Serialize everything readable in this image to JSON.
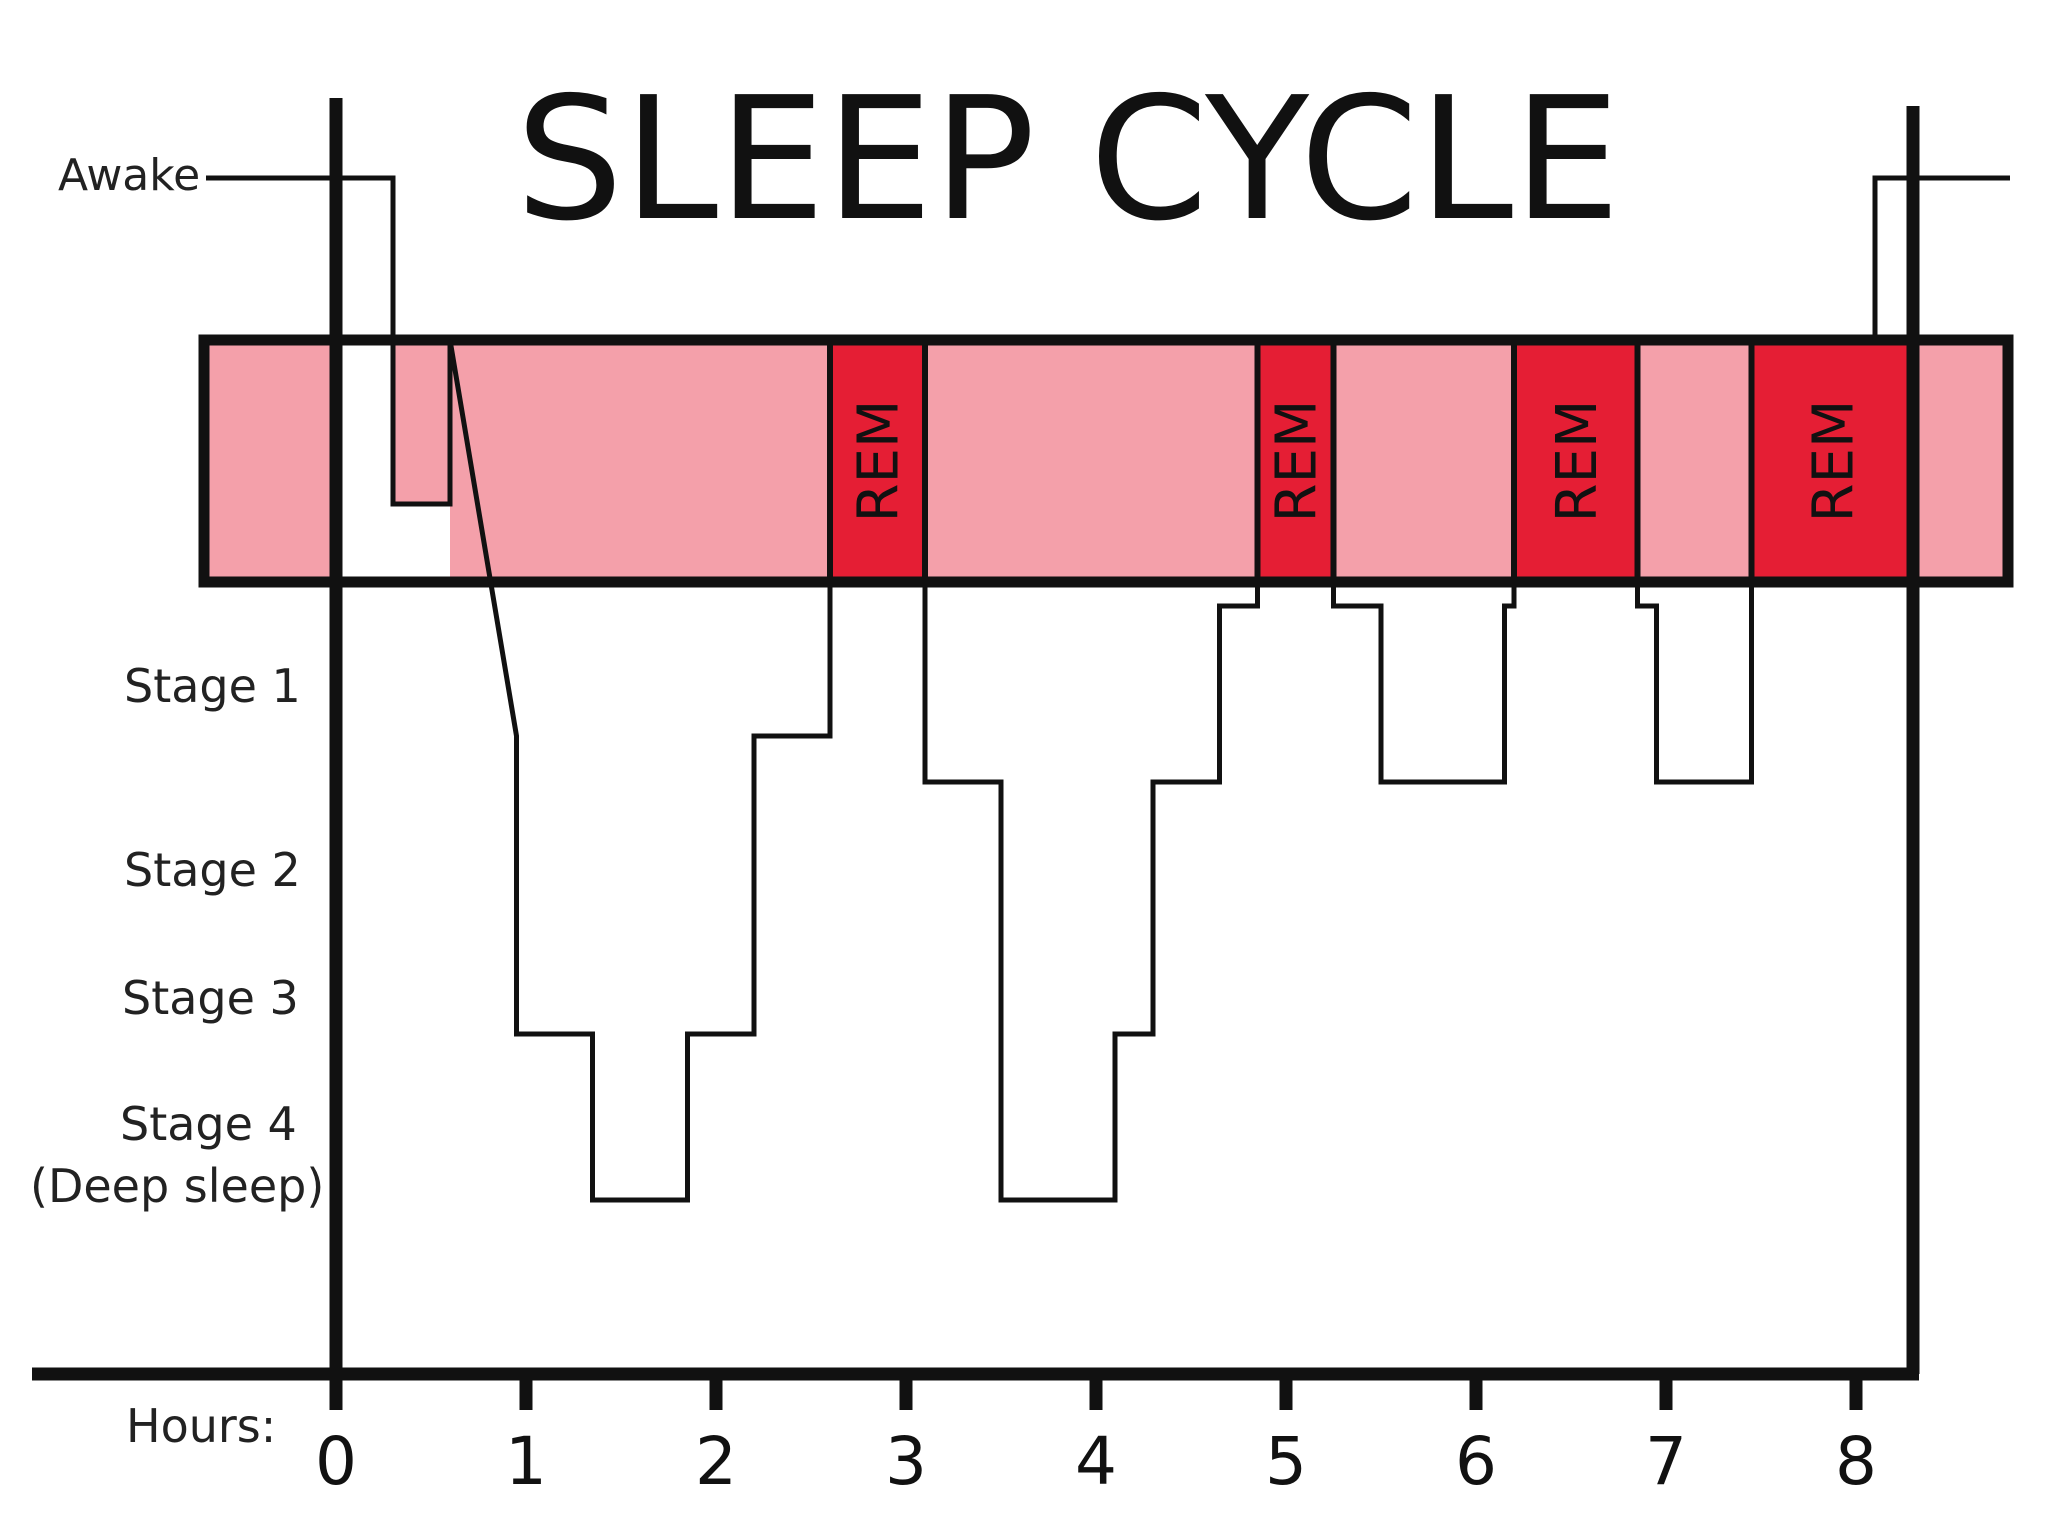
{
  "chart_data": {
    "type": "line",
    "title": "SLEEP CYCLE",
    "xlabel": "Hours:",
    "x_ticks": [
      "0",
      "1",
      "2",
      "3",
      "4",
      "5",
      "6",
      "7",
      "8"
    ],
    "xlim": [
      0,
      8.3
    ],
    "stage_labels": {
      "awake": "Awake",
      "stage1": "Stage 1",
      "stage2": "Stage 2",
      "stage3": "Stage 3",
      "stage4_line1": "Stage 4",
      "stage4_line2": "(Deep sleep)"
    },
    "rem_label": "REM",
    "rem_periods": [
      [
        2.6,
        3.1
      ],
      [
        4.85,
        5.25
      ],
      [
        6.2,
        6.85
      ],
      [
        7.45,
        8.3
      ]
    ],
    "band_colors": {
      "nrem": "#f4a0aa",
      "rem": "#e51e34",
      "gap": "#ffffff"
    },
    "hypnogram": [
      [
        -0.1,
        "awake"
      ],
      [
        0.3,
        "awake"
      ],
      [
        0.3,
        "transition"
      ],
      [
        0.6,
        "transition"
      ],
      [
        0.6,
        "rem"
      ],
      [
        0.95,
        "stage1"
      ],
      [
        0.95,
        "stage3"
      ],
      [
        1.35,
        "stage3"
      ],
      [
        1.35,
        "stage4"
      ],
      [
        1.85,
        "stage4"
      ],
      [
        1.85,
        "stage3"
      ],
      [
        2.2,
        "stage3"
      ],
      [
        2.2,
        "stage1"
      ],
      [
        2.6,
        "stage1"
      ],
      [
        2.6,
        "rem"
      ],
      [
        3.1,
        "rem"
      ],
      [
        3.1,
        "stage1b"
      ],
      [
        3.5,
        "stage1b"
      ],
      [
        3.5,
        "stage4"
      ],
      [
        4.1,
        "stage4"
      ],
      [
        4.1,
        "stage3"
      ],
      [
        4.3,
        "stage3"
      ],
      [
        4.3,
        "stage1b"
      ],
      [
        4.65,
        "stage1b"
      ],
      [
        4.65,
        "rem_low"
      ],
      [
        4.85,
        "rem_low"
      ],
      [
        4.85,
        "rem"
      ],
      [
        5.25,
        "rem"
      ],
      [
        5.25,
        "rem_low"
      ],
      [
        5.5,
        "rem_low"
      ],
      [
        5.5,
        "stage1b"
      ],
      [
        6.15,
        "stage1b"
      ],
      [
        6.15,
        "rem_low"
      ],
      [
        6.2,
        "rem_low"
      ],
      [
        6.2,
        "rem"
      ],
      [
        6.85,
        "rem"
      ],
      [
        6.85,
        "rem_low"
      ],
      [
        6.95,
        "rem_low"
      ],
      [
        6.95,
        "stage1b"
      ],
      [
        7.45,
        "stage1b"
      ],
      [
        7.45,
        "rem"
      ],
      [
        8.1,
        "rem"
      ],
      [
        8.1,
        "awake"
      ],
      [
        8.55,
        "awake"
      ]
    ]
  }
}
